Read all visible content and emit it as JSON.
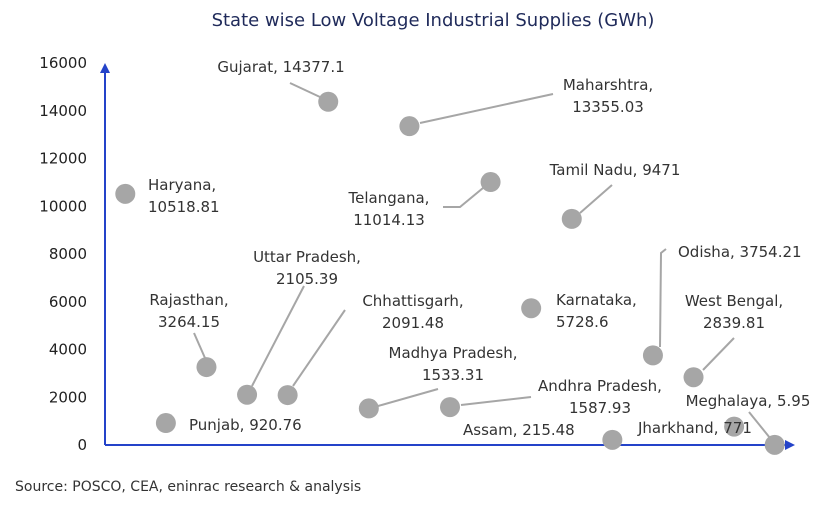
{
  "chart_data": {
    "type": "scatter",
    "title": "State wise  Low Voltage Industrial Supplies (GWh)",
    "xlabel": "",
    "ylabel": "",
    "ylim": [
      0,
      16000
    ],
    "yticks": [
      "0",
      "2000",
      "4000",
      "6000",
      "8000",
      "10000",
      "12000",
      "14000",
      "16000"
    ],
    "xlim": [
      0,
      17
    ],
    "grid": false,
    "colors": {
      "axis": "#2443c9",
      "marker": "#a6a6a6",
      "leader": "#a6a6a6",
      "title": "#1f2a5a"
    },
    "points": [
      {
        "name": "Haryana",
        "x": 0.5,
        "y": 10518.81,
        "label_lines": [
          "Haryana,",
          "10518.81"
        ]
      },
      {
        "name": "Punjab",
        "x": 1.5,
        "y": 920.76,
        "label_lines": [
          "Punjab, 920.76"
        ]
      },
      {
        "name": "Rajasthan",
        "x": 2.5,
        "y": 3264.15,
        "label_lines": [
          "Rajasthan,",
          "3264.15"
        ]
      },
      {
        "name": "Uttar Pradesh",
        "x": 3.5,
        "y": 2105.39,
        "label_lines": [
          "Uttar Pradesh,",
          "2105.39"
        ]
      },
      {
        "name": "Chhattisgarh",
        "x": 4.5,
        "y": 2091.48,
        "label_lines": [
          "Chhattisgarh,",
          "2091.48"
        ]
      },
      {
        "name": "Gujarat",
        "x": 5.5,
        "y": 14377.1,
        "label_lines": [
          "Gujarat, 14377.1"
        ]
      },
      {
        "name": "Madhya Pradesh",
        "x": 6.5,
        "y": 1533.31,
        "label_lines": [
          "Madhya Pradesh,",
          "1533.31"
        ]
      },
      {
        "name": "Maharshtra",
        "x": 7.5,
        "y": 13355.03,
        "label_lines": [
          "Maharshtra,",
          "13355.03"
        ]
      },
      {
        "name": "Andhra Pradesh",
        "x": 8.5,
        "y": 1587.93,
        "label_lines": [
          "Andhra Pradesh,",
          "1587.93"
        ]
      },
      {
        "name": "Telangana",
        "x": 9.5,
        "y": 11014.13,
        "label_lines": [
          "Telangana,",
          "11014.13"
        ]
      },
      {
        "name": "Karnataka",
        "x": 10.5,
        "y": 5728.6,
        "label_lines": [
          "Karnataka,",
          "5728.6"
        ]
      },
      {
        "name": "Tamil Nadu",
        "x": 11.5,
        "y": 9471,
        "label_lines": [
          "Tamil Nadu, 9471"
        ]
      },
      {
        "name": "Assam",
        "x": 12.5,
        "y": 215.48,
        "label_lines": [
          "Assam, 215.48"
        ]
      },
      {
        "name": "Odisha",
        "x": 13.5,
        "y": 3754.21,
        "label_lines": [
          "Odisha, 3754.21"
        ]
      },
      {
        "name": "West Bengal",
        "x": 14.5,
        "y": 2839.81,
        "label_lines": [
          "West Bengal,",
          "2839.81"
        ]
      },
      {
        "name": "Jharkhand",
        "x": 15.5,
        "y": 771,
        "label_lines": [
          "Jharkhand, 771"
        ]
      },
      {
        "name": "Meghalaya",
        "x": 16.5,
        "y": 5.95,
        "label_lines": [
          "Meghalaya, 5.95"
        ]
      }
    ]
  },
  "source": "Source: POSCO, CEA, eninrac research & analysis"
}
